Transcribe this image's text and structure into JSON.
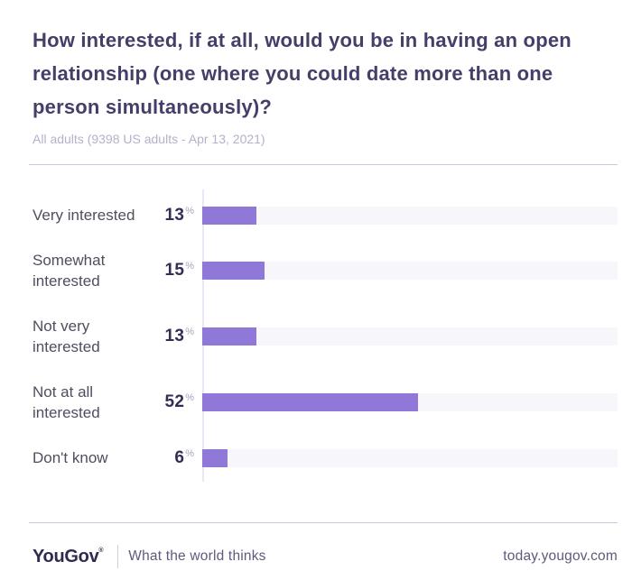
{
  "header": {
    "title": "How interested, if at all, would you be in having an open relationship (one where you could date more than one person simultaneously)?",
    "subtitle": "All adults (9398 US adults - Apr 13, 2021)"
  },
  "chart_data": {
    "type": "bar",
    "orientation": "horizontal",
    "title": "How interested, if at all, would you be in having an open relationship (one where you could date more than one person simultaneously)?",
    "subtitle": "All adults (9398 US adults - Apr 13, 2021)",
    "categories": [
      "Very interested",
      "Somewhat interested",
      "Not very interested",
      "Not at all interested",
      "Don't know"
    ],
    "values": [
      13,
      15,
      13,
      52,
      6
    ],
    "unit": "%",
    "xlim": [
      0,
      100
    ],
    "value_label_position": "left-of-bar",
    "grid": false,
    "legend": false,
    "bar_color": "#8f78d7",
    "track_color": "#f7f6fb"
  },
  "footer": {
    "logo_text": "YouGov",
    "logo_mark": "®",
    "tagline": "What the world thinks",
    "url": "today.yougov.com"
  },
  "colors": {
    "accent_purple": "#8f78d7",
    "title_text": "#453e69",
    "value_text": "#332e55",
    "muted_text": "#b4b1ca",
    "divider": "#cdc8e0"
  }
}
